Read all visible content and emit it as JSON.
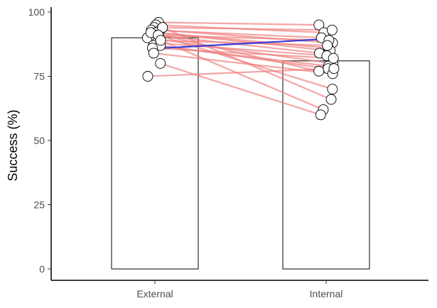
{
  "chart_data": {
    "type": "bar",
    "categories": [
      "External",
      "Internal"
    ],
    "values": [
      90,
      81
    ],
    "ylabel": "Success (%)",
    "xlabel": "",
    "ylim": [
      0,
      100
    ],
    "yticks": [
      0,
      25,
      50,
      75,
      100
    ],
    "grid": false,
    "bar_fill": "#ffffff",
    "bar_stroke": "#000000",
    "point_fill": "#ffffff",
    "point_stroke": "#000000",
    "line_color": "#f08080",
    "mean_line_color": "#3b3bd9",
    "mean_line": [
      86,
      89.5
    ],
    "paired": [
      [
        96,
        95
      ],
      [
        95,
        92
      ],
      [
        94,
        93
      ],
      [
        93,
        90
      ],
      [
        93,
        88
      ],
      [
        92,
        86
      ],
      [
        92,
        85
      ],
      [
        91,
        84
      ],
      [
        91,
        89
      ],
      [
        90,
        80
      ],
      [
        89,
        87
      ],
      [
        88,
        83
      ],
      [
        87,
        79
      ],
      [
        87,
        78
      ],
      [
        86,
        82
      ],
      [
        84,
        76
      ],
      [
        92,
        77
      ],
      [
        94,
        66
      ],
      [
        91,
        70
      ],
      [
        89,
        62
      ],
      [
        80,
        60
      ],
      [
        75,
        78
      ]
    ]
  }
}
